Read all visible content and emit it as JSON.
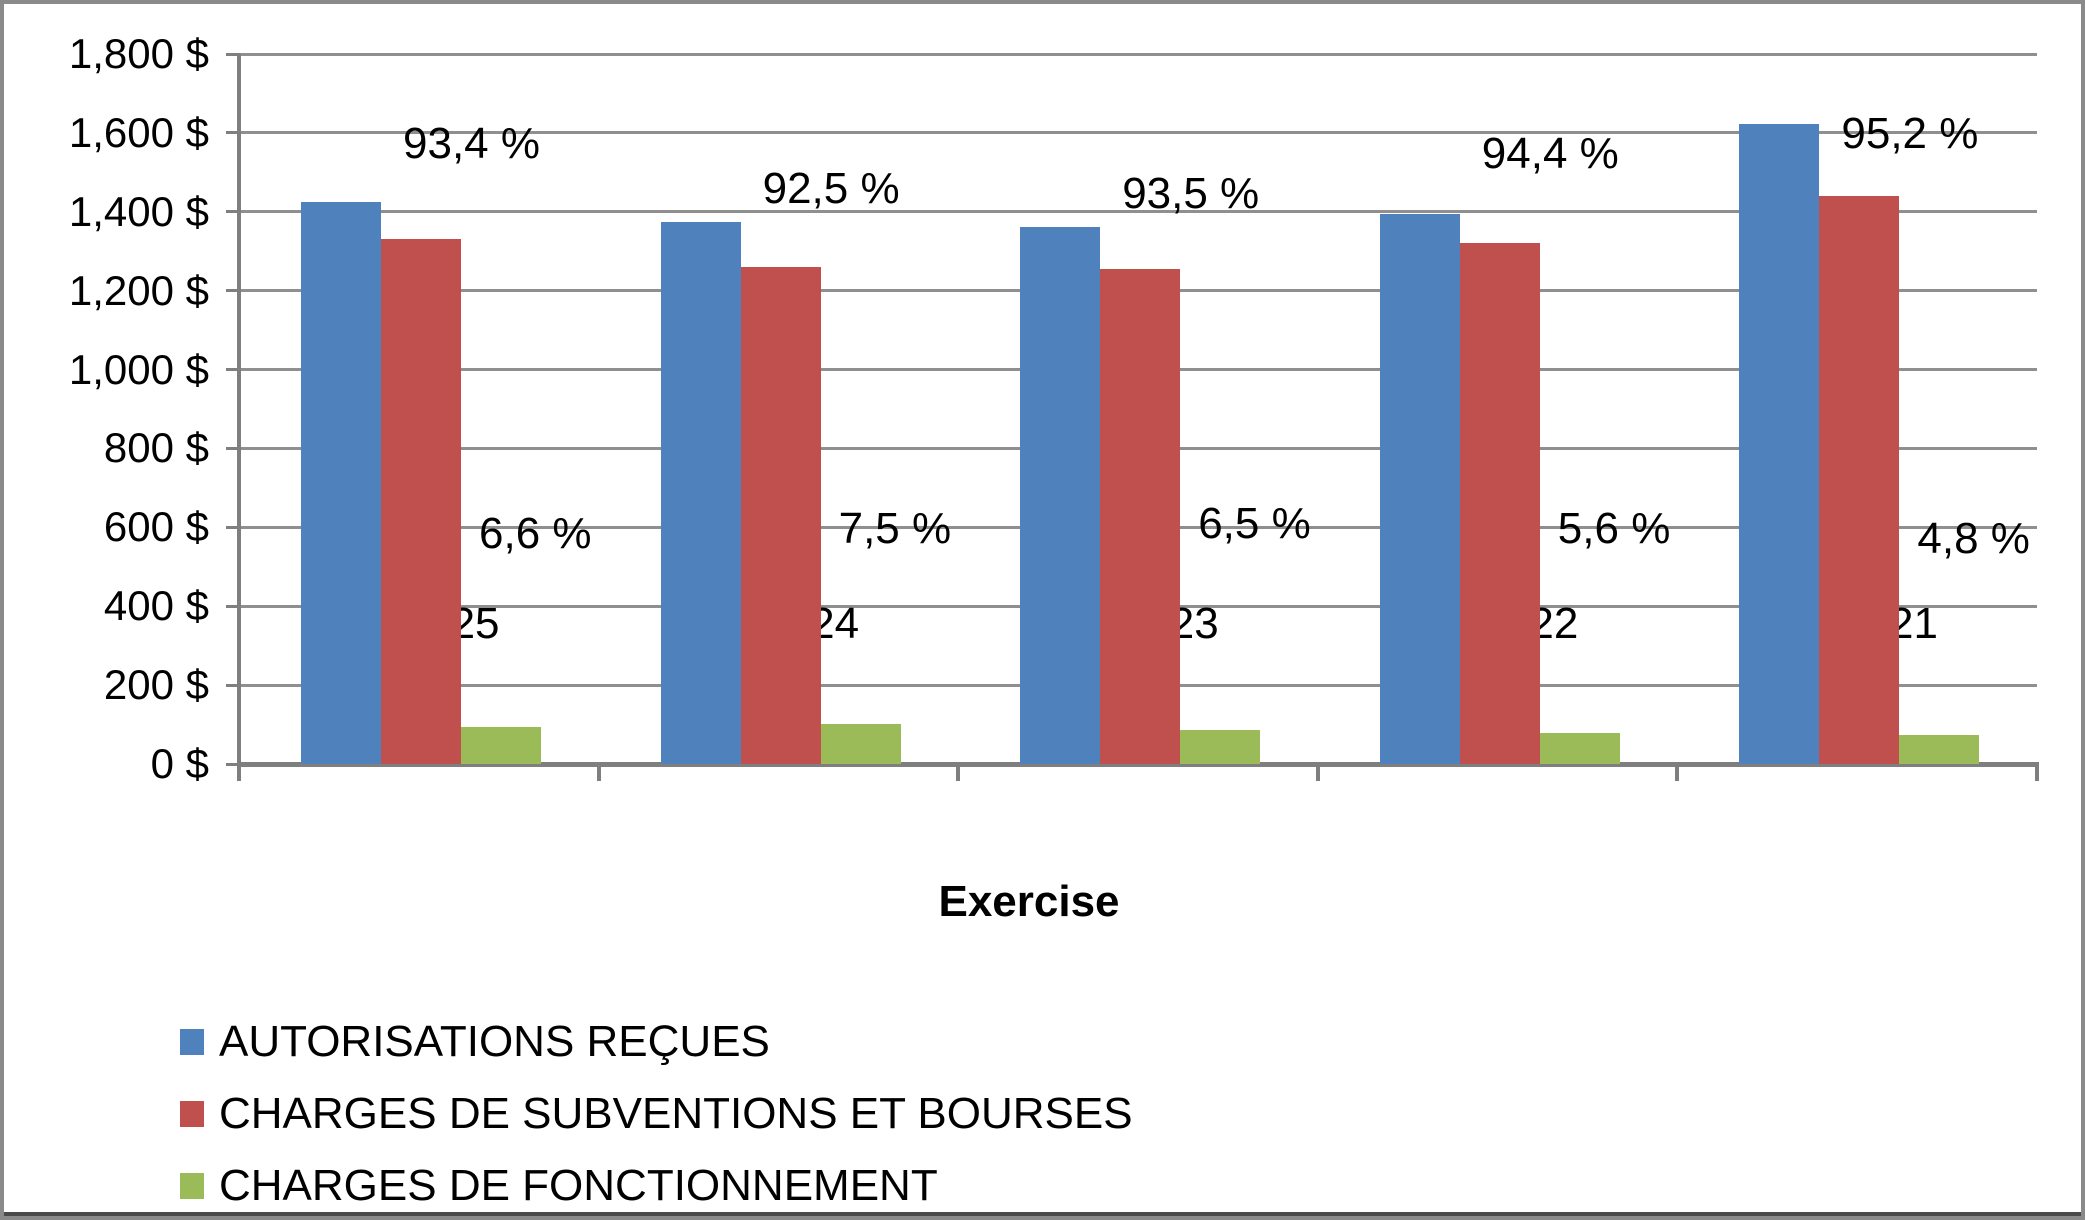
{
  "chart_data": {
    "type": "bar",
    "title": "",
    "xlabel": "Exercise",
    "ylabel": "",
    "categories": [
      "2024-25",
      "2023-24",
      "2022-23",
      "2021-22",
      "2020-21"
    ],
    "series": [
      {
        "name": "AUTORISATIONS REÇUES",
        "color": "#4f81bd",
        "values": [
          1425,
          1375,
          1362,
          1395,
          1623
        ],
        "labels": [
          "",
          "",
          "",
          "",
          ""
        ]
      },
      {
        "name": "CHARGES DE SUBVENTIONS ET BOURSES",
        "color": "#c0504d",
        "values": [
          1332,
          1260,
          1256,
          1320,
          1441
        ],
        "labels": [
          "93,4 %",
          "92,5 %",
          "93,5 %",
          "94,4 %",
          "95,2 %"
        ]
      },
      {
        "name": "CHARGES DE FONCTIONNEMENT",
        "color": "#9bbb59",
        "values": [
          94,
          102,
          87,
          78,
          73
        ],
        "labels": [
          "6,6 %",
          "7,5 %",
          "6,5 %",
          "5,6 %",
          "4,8 %"
        ]
      }
    ],
    "ylim": [
      0,
      1800
    ],
    "ytick_step": 200,
    "ytick_labels": [
      "0 $",
      "200 $",
      "400 $",
      "600 $",
      "800 $",
      "1,000 $",
      "1,200 $",
      "1,400 $",
      "1,600 $",
      "1,800 $"
    ],
    "value_unit": "$",
    "grid": true,
    "legend_position": "bottom-left",
    "colors": {
      "gridline": "#8f8f8f",
      "axis": "#7f7f7f",
      "text": "#000000",
      "background": "#ffffff",
      "border": "#8a8a8a"
    }
  }
}
